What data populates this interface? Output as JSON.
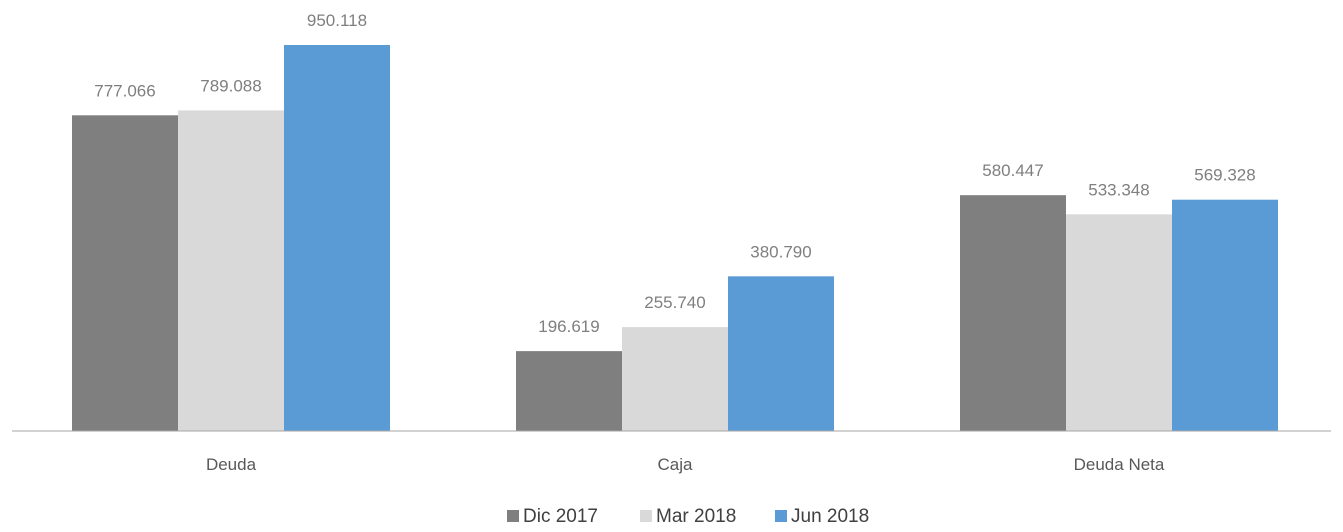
{
  "chart_data": {
    "type": "bar",
    "title": "",
    "xlabel": "",
    "ylabel": "",
    "categories": [
      "Deuda",
      "Caja",
      "Deuda Neta"
    ],
    "series": [
      {
        "name": "Dic 2017",
        "color": "#7f7f7f",
        "values": [
          777066,
          196619,
          580447
        ],
        "labels": [
          "777.066",
          "196.619",
          "580.447"
        ]
      },
      {
        "name": "Mar 2018",
        "color": "#d9d9d9",
        "values": [
          789088,
          255740,
          533348
        ],
        "labels": [
          "789.088",
          "255.740",
          "533.348"
        ]
      },
      {
        "name": "Jun 2018",
        "color": "#5b9bd5",
        "values": [
          950118,
          380790,
          569328
        ],
        "labels": [
          "950.118",
          "380.790",
          "569.328"
        ]
      }
    ],
    "ylim": [
      0,
      950118
    ],
    "grid": false,
    "legend": "bottom",
    "colors": {
      "axis": "#a6a6a6",
      "data_label": "#7f7f7f",
      "category_label": "#595959",
      "legend_text": "#404040"
    }
  }
}
